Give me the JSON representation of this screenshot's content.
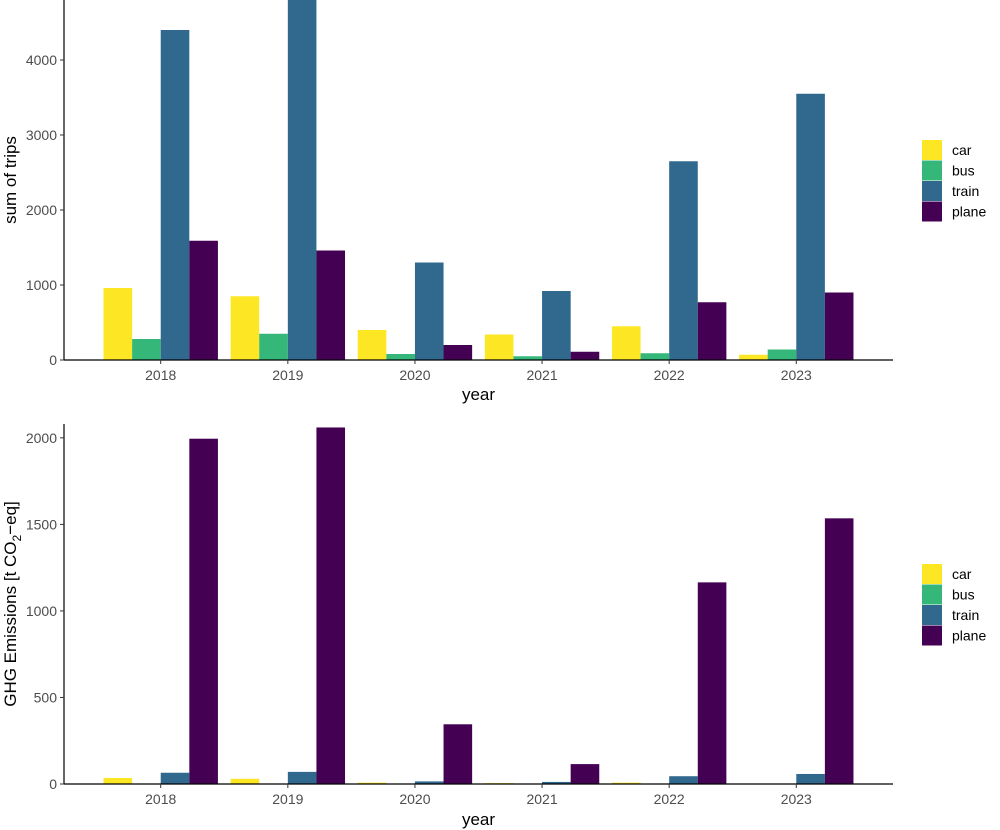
{
  "colors": {
    "car": "#fde725",
    "bus": "#35b779",
    "train": "#31688e",
    "plane": "#440154"
  },
  "chart_data": [
    {
      "type": "bar",
      "categories": [
        "2018",
        "2019",
        "2020",
        "2021",
        "2022",
        "2023"
      ],
      "series": [
        {
          "name": "car",
          "values": [
            960,
            850,
            400,
            340,
            450,
            70
          ]
        },
        {
          "name": "bus",
          "values": [
            280,
            350,
            80,
            50,
            90,
            140
          ]
        },
        {
          "name": "train",
          "values": [
            4400,
            4800,
            1300,
            920,
            2650,
            3550
          ]
        },
        {
          "name": "plane",
          "values": [
            1590,
            1460,
            200,
            110,
            770,
            900
          ]
        }
      ],
      "xlabel": "year",
      "ylabel": "sum of trips",
      "ylim": [
        0,
        4800
      ],
      "yticks": [
        0,
        1000,
        2000,
        3000,
        4000
      ],
      "grid": false,
      "legend_position": "right"
    },
    {
      "type": "bar",
      "categories": [
        "2018",
        "2019",
        "2020",
        "2021",
        "2022",
        "2023"
      ],
      "series": [
        {
          "name": "car",
          "values": [
            35,
            30,
            8,
            5,
            8,
            2
          ]
        },
        {
          "name": "bus",
          "values": [
            2,
            2,
            1,
            1,
            1,
            1
          ]
        },
        {
          "name": "train",
          "values": [
            65,
            70,
            15,
            12,
            45,
            58
          ]
        },
        {
          "name": "plane",
          "values": [
            1995,
            2060,
            345,
            115,
            1165,
            1535
          ]
        }
      ],
      "xlabel": "year",
      "ylabel": "GHG Emissions [t CO₂−eq]",
      "ylim": [
        0,
        2080
      ],
      "yticks": [
        0,
        500,
        1000,
        1500,
        2000
      ],
      "grid": false,
      "legend_position": "right"
    }
  ]
}
